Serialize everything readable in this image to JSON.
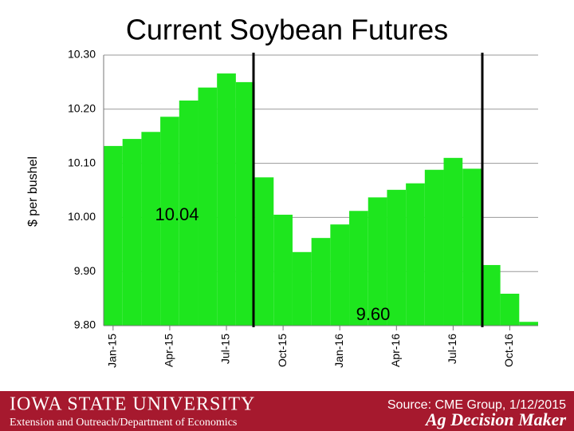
{
  "chart_data": {
    "type": "bar",
    "title": "Current Soybean Futures",
    "y_label": "$ per bushel",
    "categories": [
      "Jan-15",
      null,
      null,
      "Apr-15",
      null,
      null,
      "Jul-15",
      null,
      null,
      "Oct-15",
      null,
      null,
      "Jan-16",
      null,
      null,
      "Apr-16",
      null,
      null,
      "Jul-16",
      null,
      null,
      "Oct-16",
      null
    ],
    "values": [
      10.132,
      10.145,
      10.158,
      10.186,
      10.216,
      10.24,
      10.266,
      10.25,
      10.074,
      10.005,
      9.936,
      9.962,
      9.987,
      10.012,
      10.037,
      10.051,
      10.063,
      10.088,
      10.11,
      10.09,
      9.912,
      9.859,
      9.807
    ],
    "color": "#1ee61e",
    "ylim": [
      9.8,
      10.3
    ],
    "yticks": [
      {
        "value": 9.8,
        "label": "9.80"
      },
      {
        "value": 9.9,
        "label": "9.90"
      },
      {
        "value": 10.0,
        "label": "10.00"
      },
      {
        "value": 10.1,
        "label": "10.10"
      },
      {
        "value": 10.2,
        "label": "10.20"
      },
      {
        "value": 10.3,
        "label": "10.30"
      }
    ],
    "grid": true,
    "annotations": [
      "10.04",
      "9.60"
    ]
  },
  "footer": {
    "university": "IOWA STATE UNIVERSITY",
    "department": "Extension and Outreach/Department of Economics",
    "source": "Source: CME Group, 1/12/2015",
    "brand": "Ag Decision Maker"
  }
}
